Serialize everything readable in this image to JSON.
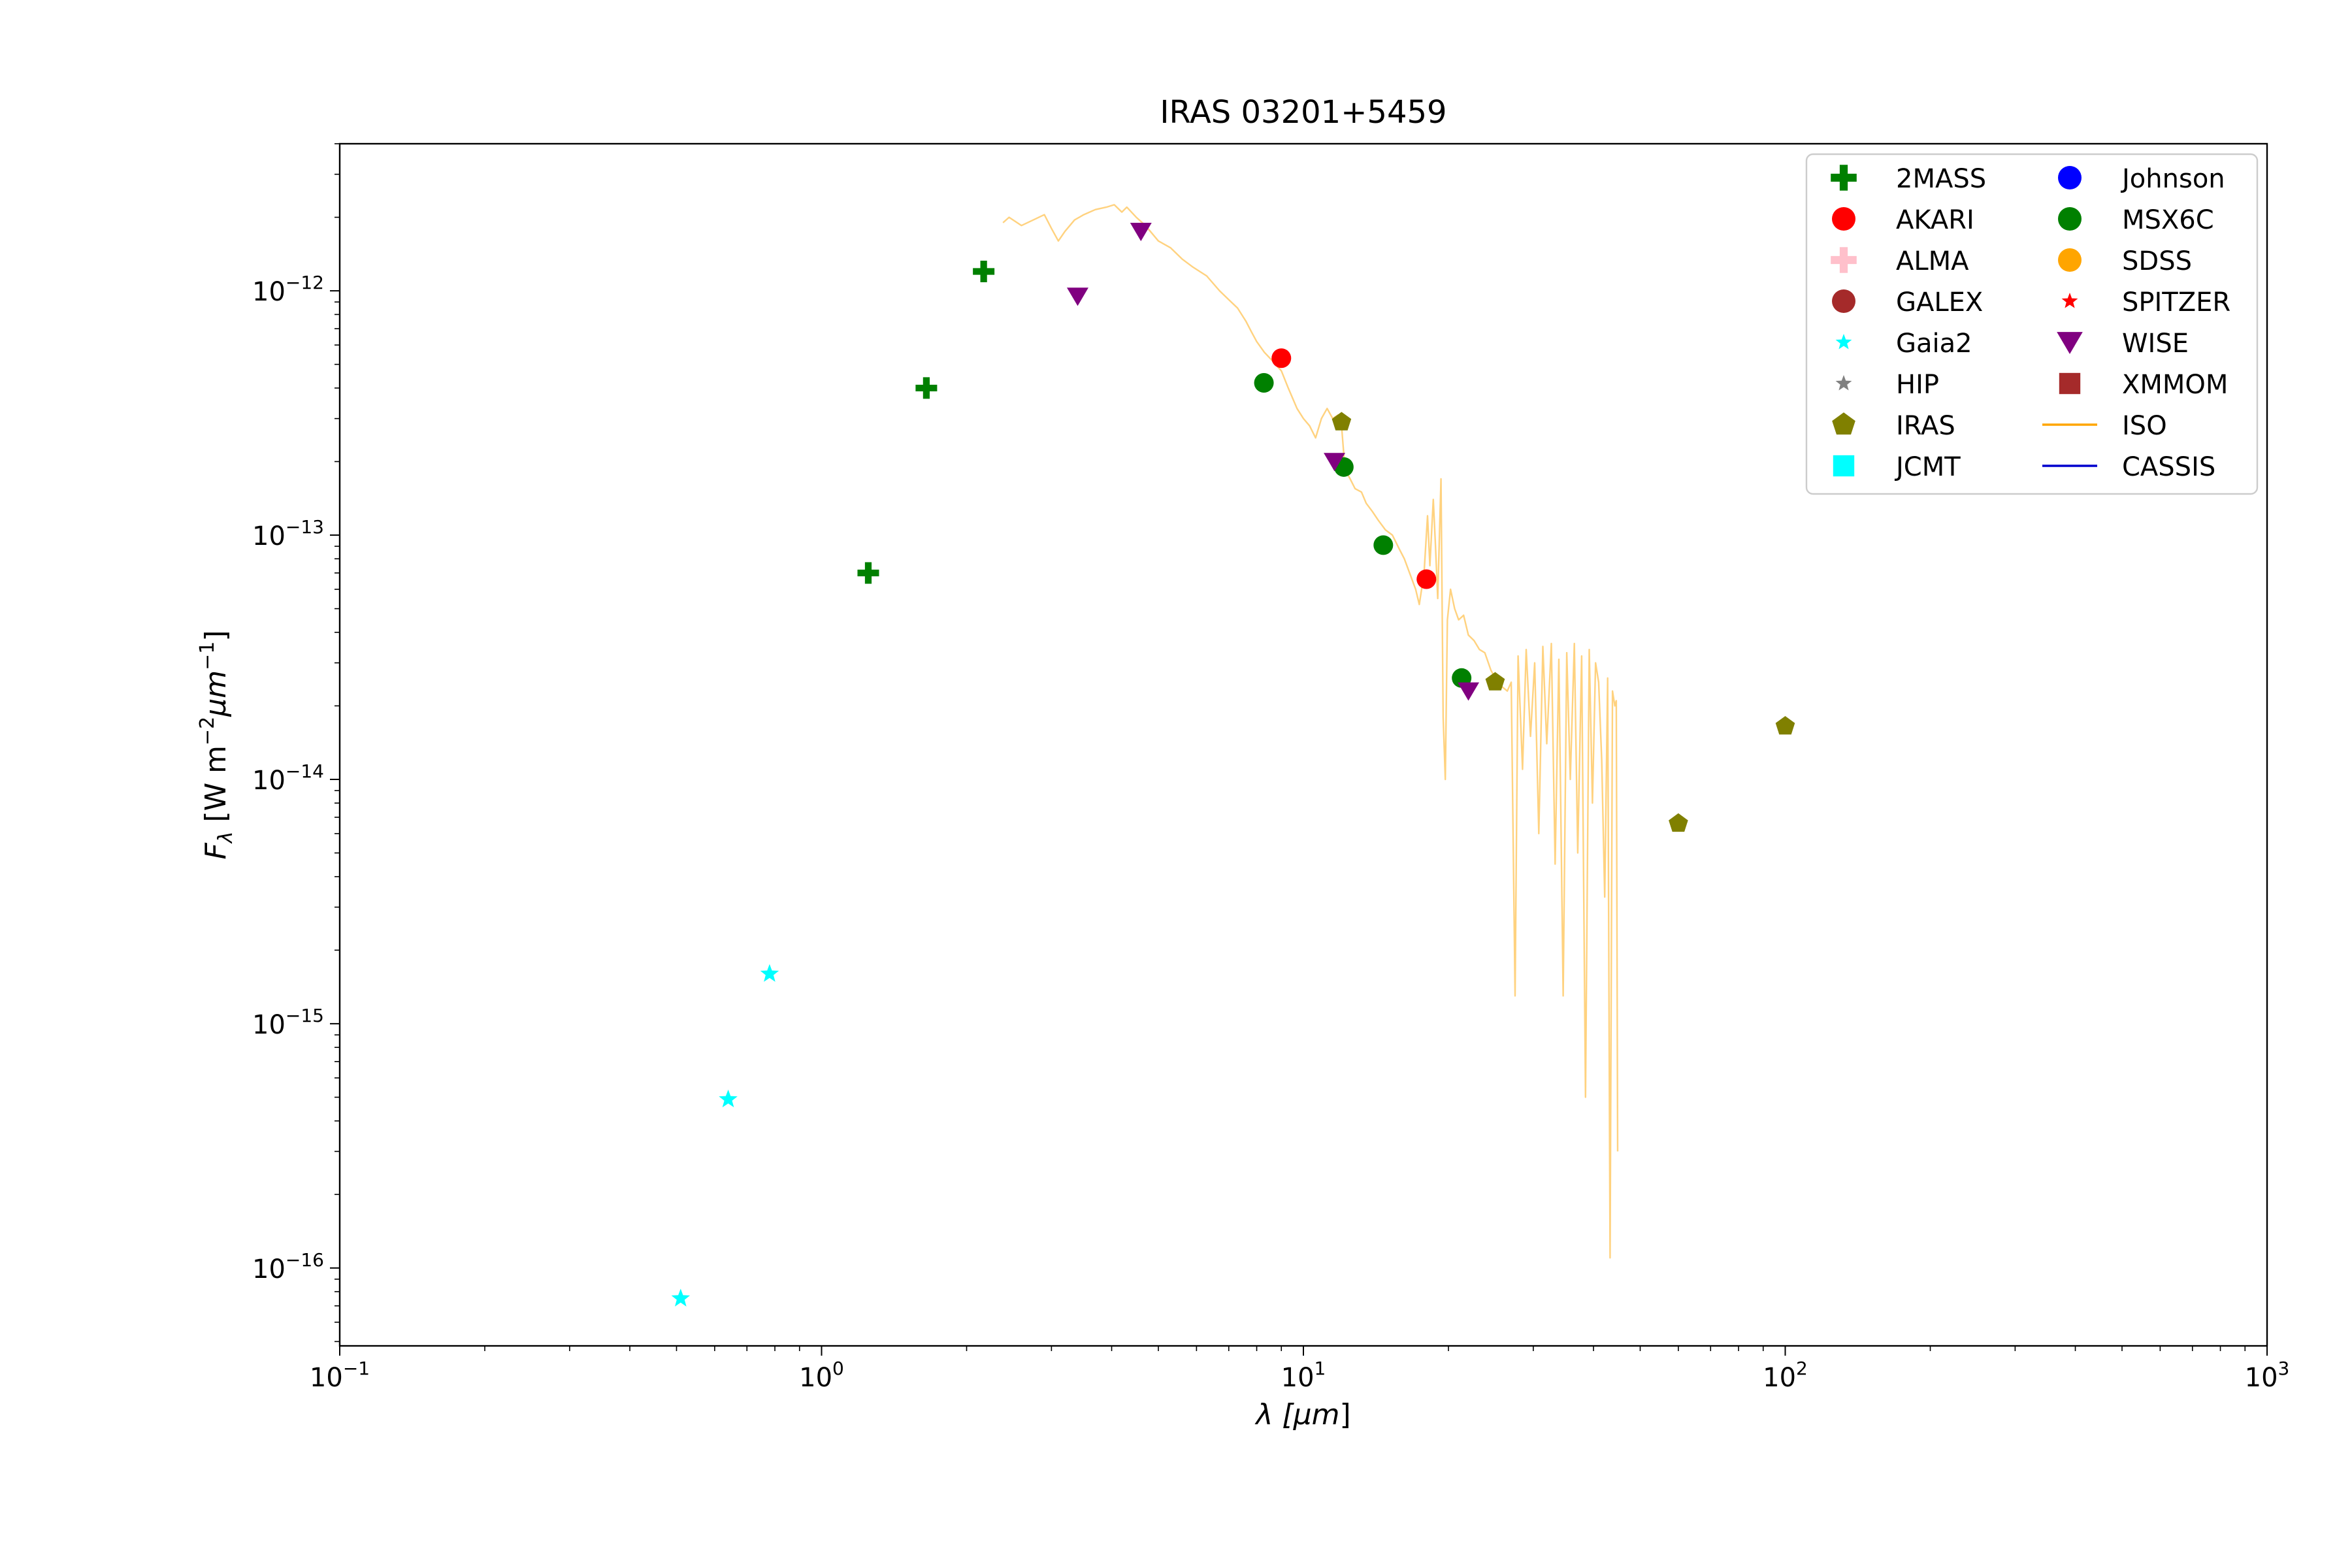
{
  "chart_data": {
    "type": "scatter",
    "title": "IRAS 03201+5459",
    "xlabel_base": "λ [",
    "xlabel_unit": "μm",
    "xlabel_end": "]",
    "ylabel_main": "F",
    "ylabel_sub": "λ",
    "ylabel_unit_a": " [W m",
    "ylabel_exp_a": "−2",
    "ylabel_unit_b": "μm",
    "ylabel_exp_b": "−1",
    "ylabel_end": "]",
    "x_scale": "log",
    "y_scale": "log",
    "xlim": [
      0.1,
      1000
    ],
    "ylim": [
      4.8e-17,
      4e-12
    ],
    "grid": false,
    "legend_position": "top-right",
    "x_ticks": [
      {
        "value": 0.1,
        "base": "10",
        "exp": "−1"
      },
      {
        "value": 1,
        "base": "10",
        "exp": "0"
      },
      {
        "value": 10,
        "base": "10",
        "exp": "1"
      },
      {
        "value": 100,
        "base": "10",
        "exp": "2"
      },
      {
        "value": 1000,
        "base": "10",
        "exp": "3"
      }
    ],
    "y_ticks": [
      {
        "value": 1e-16,
        "base": "10",
        "exp": "−16"
      },
      {
        "value": 1e-15,
        "base": "10",
        "exp": "−15"
      },
      {
        "value": 1e-14,
        "base": "10",
        "exp": "−14"
      },
      {
        "value": 1e-13,
        "base": "10",
        "exp": "−13"
      },
      {
        "value": 1e-12,
        "base": "10",
        "exp": "−12"
      }
    ],
    "series": [
      {
        "name": "2MASS",
        "marker": "plus",
        "color": "#008000",
        "points": [
          [
            1.25,
            7e-14
          ],
          [
            1.65,
            4e-13
          ],
          [
            2.17,
            1.2e-12
          ]
        ]
      },
      {
        "name": "AKARI",
        "marker": "circle",
        "color": "#ff0000",
        "points": [
          [
            9.0,
            5.3e-13
          ],
          [
            18.0,
            6.6e-14
          ]
        ]
      },
      {
        "name": "ALMA",
        "marker": "plus",
        "color": "#ffc0cb",
        "points": []
      },
      {
        "name": "GALEX",
        "marker": "circle",
        "color": "#a52a2a",
        "points": []
      },
      {
        "name": "Gaia2",
        "marker": "star",
        "color": "#00ffff",
        "points": [
          [
            0.51,
            7.5e-17
          ],
          [
            0.64,
            4.9e-16
          ],
          [
            0.78,
            1.6e-15
          ]
        ]
      },
      {
        "name": "HIP",
        "marker": "star",
        "color": "#808080",
        "points": []
      },
      {
        "name": "IRAS",
        "marker": "pentagon",
        "color": "#808000",
        "points": [
          [
            12,
            2.9e-13
          ],
          [
            25,
            2.5e-14
          ],
          [
            60,
            6.6e-15
          ],
          [
            100,
            1.65e-14
          ]
        ]
      },
      {
        "name": "JCMT",
        "marker": "square",
        "color": "#00ffff",
        "points": []
      },
      {
        "name": "Johnson",
        "marker": "circle",
        "color": "#0000ff",
        "points": []
      },
      {
        "name": "MSX6C",
        "marker": "circle",
        "color": "#008000",
        "points": [
          [
            8.28,
            4.2e-13
          ],
          [
            12.13,
            1.9e-13
          ],
          [
            14.65,
            9.1e-14
          ],
          [
            21.3,
            2.6e-14
          ]
        ]
      },
      {
        "name": "SDSS",
        "marker": "circle",
        "color": "#ffa500",
        "points": []
      },
      {
        "name": "SPITZER",
        "marker": "star",
        "color": "#ff0000",
        "points": []
      },
      {
        "name": "WISE",
        "marker": "triangle-down",
        "color": "#800080",
        "points": [
          [
            3.4,
            9.5e-13
          ],
          [
            4.6,
            1.75e-12
          ],
          [
            11.6,
            2e-13
          ],
          [
            22.0,
            2.3e-14
          ]
        ]
      },
      {
        "name": "XMMOM",
        "marker": "square",
        "color": "#a52a2a",
        "points": []
      },
      {
        "name": "ISO",
        "marker": "line",
        "color": "#ffa500",
        "opacity": 0.5,
        "points": [
          [
            2.38,
            1.9e-12
          ],
          [
            2.45,
            2e-12
          ],
          [
            2.6,
            1.85e-12
          ],
          [
            2.75,
            1.95e-12
          ],
          [
            2.9,
            2.05e-12
          ],
          [
            3.0,
            1.8e-12
          ],
          [
            3.1,
            1.6e-12
          ],
          [
            3.2,
            1.75e-12
          ],
          [
            3.35,
            1.95e-12
          ],
          [
            3.5,
            2.05e-12
          ],
          [
            3.7,
            2.15e-12
          ],
          [
            3.9,
            2.2e-12
          ],
          [
            4.05,
            2.25e-12
          ],
          [
            4.2,
            2.1e-12
          ],
          [
            4.3,
            2.2e-12
          ],
          [
            4.5,
            2e-12
          ],
          [
            4.7,
            1.85e-12
          ],
          [
            5.0,
            1.6e-12
          ],
          [
            5.3,
            1.5e-12
          ],
          [
            5.6,
            1.35e-12
          ],
          [
            5.9,
            1.25e-12
          ],
          [
            6.3,
            1.15e-12
          ],
          [
            6.7,
            1e-12
          ],
          [
            7.0,
            9.2e-13
          ],
          [
            7.3,
            8.5e-13
          ],
          [
            7.6,
            7.5e-13
          ],
          [
            7.8,
            6.8e-13
          ],
          [
            8.0,
            6.2e-13
          ],
          [
            8.3,
            5.6e-13
          ],
          [
            8.6,
            5.2e-13
          ],
          [
            9.0,
            4.7e-13
          ],
          [
            9.3,
            4e-13
          ],
          [
            9.7,
            3.3e-13
          ],
          [
            10.0,
            3e-13
          ],
          [
            10.3,
            2.8e-13
          ],
          [
            10.6,
            2.5e-13
          ],
          [
            10.9,
            3e-13
          ],
          [
            11.2,
            3.3e-13
          ],
          [
            11.5,
            3e-13
          ],
          [
            11.8,
            3.1e-13
          ],
          [
            12.0,
            2.8e-13
          ],
          [
            12.2,
            1.85e-13
          ],
          [
            12.5,
            1.7e-13
          ],
          [
            12.8,
            1.55e-13
          ],
          [
            13.2,
            1.5e-13
          ],
          [
            13.5,
            1.35e-13
          ],
          [
            13.9,
            1.25e-13
          ],
          [
            14.3,
            1.15e-13
          ],
          [
            14.8,
            1.05e-13
          ],
          [
            15.3,
            1e-13
          ],
          [
            15.8,
            8.8e-14
          ],
          [
            16.2,
            8e-14
          ],
          [
            16.7,
            6.8e-14
          ],
          [
            17.1,
            6e-14
          ],
          [
            17.4,
            5.2e-14
          ],
          [
            17.8,
            7e-14
          ],
          [
            18.1,
            1.2e-13
          ],
          [
            18.3,
            7.5e-14
          ],
          [
            18.6,
            1.4e-13
          ],
          [
            18.8,
            9e-14
          ],
          [
            19.0,
            5.5e-14
          ],
          [
            19.3,
            1.7e-13
          ],
          [
            19.5,
            1.8e-14
          ],
          [
            19.7,
            1e-14
          ],
          [
            19.9,
            4.5e-14
          ],
          [
            20.2,
            6e-14
          ],
          [
            20.6,
            5e-14
          ],
          [
            21.0,
            4.5e-14
          ],
          [
            21.5,
            4.7e-14
          ],
          [
            22.0,
            3.9e-14
          ],
          [
            22.6,
            3.7e-14
          ],
          [
            23.2,
            3.4e-14
          ],
          [
            23.8,
            3.3e-14
          ],
          [
            24.5,
            2.8e-14
          ],
          [
            25.0,
            2.6e-14
          ],
          [
            25.8,
            2.4e-14
          ],
          [
            26.5,
            2.3e-14
          ],
          [
            27.0,
            2.5e-14
          ],
          [
            27.5,
            1.3e-15
          ],
          [
            27.9,
            3.2e-14
          ],
          [
            28.5,
            1.1e-14
          ],
          [
            29.0,
            3.4e-14
          ],
          [
            29.6,
            1.5e-14
          ],
          [
            30.2,
            3e-14
          ],
          [
            30.8,
            6e-15
          ],
          [
            31.4,
            3.5e-14
          ],
          [
            32.0,
            1.4e-14
          ],
          [
            32.7,
            3.6e-14
          ],
          [
            33.3,
            4.5e-15
          ],
          [
            33.9,
            3.1e-14
          ],
          [
            34.6,
            1.3e-15
          ],
          [
            35.2,
            3.3e-14
          ],
          [
            35.8,
            1e-14
          ],
          [
            36.5,
            3.6e-14
          ],
          [
            37.1,
            5e-15
          ],
          [
            37.8,
            3.2e-14
          ],
          [
            38.5,
            5e-16
          ],
          [
            39.2,
            3.4e-14
          ],
          [
            39.8,
            8e-15
          ],
          [
            40.4,
            3e-14
          ],
          [
            41.0,
            2.5e-14
          ],
          [
            41.6,
            1.2e-14
          ],
          [
            42.2,
            3.3e-15
          ],
          [
            42.8,
            2.6e-14
          ],
          [
            43.3,
            1.1e-16
          ],
          [
            43.8,
            2.3e-14
          ],
          [
            44.3,
            2e-14
          ],
          [
            44.6,
            2.1e-14
          ],
          [
            44.9,
            3e-16
          ]
        ]
      },
      {
        "name": "CASSIS",
        "marker": "line",
        "color": "#0000cd",
        "points": []
      }
    ]
  }
}
